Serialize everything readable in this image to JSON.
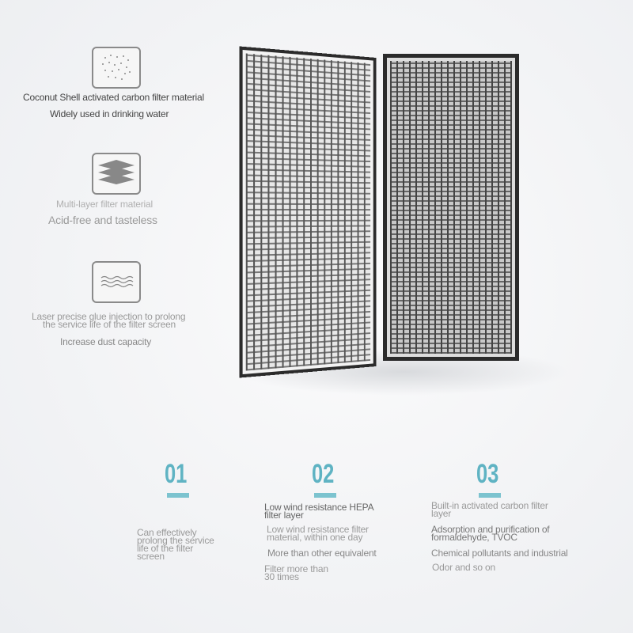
{
  "features": [
    {
      "icon": "carbon-particles-icon",
      "title": "Coconut Shell activated carbon filter material",
      "subtitle": "Widely used in drinking water"
    },
    {
      "icon": "layers-icon",
      "title": "Multi-layer filter material",
      "subtitle": "Acid-free and tasteless"
    },
    {
      "icon": "waves-icon",
      "title_line1": "Laser precise glue injection to prolong",
      "title_line2": "the service life of the filter screen",
      "subtitle": "Increase dust capacity"
    }
  ],
  "steps": [
    {
      "number": "01",
      "lines": [
        "Can effectively",
        "prolong the service",
        "life of the filter",
        "screen"
      ]
    },
    {
      "number": "02",
      "heading": [
        "Low wind resistance HEPA",
        "filter layer"
      ],
      "lines": [
        "Low wind resistance filter",
        "material, within one day"
      ],
      "line3": "More than other equivalent",
      "line4": [
        "Filter more than",
        "30 times"
      ]
    },
    {
      "number": "03",
      "heading": [
        "Built-in activated carbon filter",
        "layer"
      ],
      "lines": [
        "Adsorption and purification of",
        "formaldehyde, TVOC"
      ],
      "line3": "Chemical pollutants and industrial",
      "line4": "Odor and so on"
    }
  ],
  "colors": {
    "accent": "#5fb3c3"
  }
}
